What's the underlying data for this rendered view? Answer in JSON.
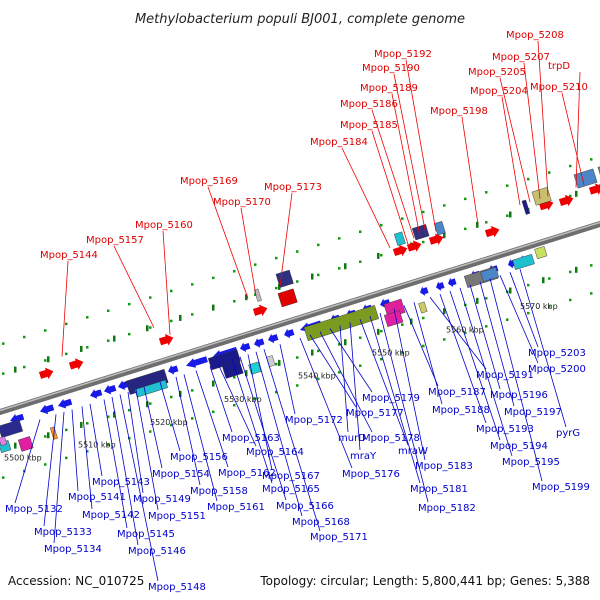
{
  "title": "Methylobacterium populi BJ001, complete genome",
  "footer": {
    "accession": "Accession: NC_010725",
    "summary": "Topology: circular; Length: 5,800,441 bp; Genes: 5,388"
  },
  "colors": {
    "forward_label": "#dd0000",
    "reverse_label": "#0000cc",
    "backbone": "#888888",
    "tick": "#118811"
  },
  "kbp_markers": [
    "5500 kbp",
    "5510 kbp",
    "5520 kbp",
    "5530 kbp",
    "5540 kbp",
    "5550 kbp",
    "5560 kbp",
    "5570 kbp"
  ],
  "forward_genes": [
    "Mpop_5144",
    "Mpop_5157",
    "Mpop_5160",
    "Mpop_5169",
    "Mpop_5170",
    "Mpop_5173",
    "Mpop_5184",
    "Mpop_5185",
    "Mpop_5186",
    "Mpop_5189",
    "Mpop_5190",
    "Mpop_5192",
    "Mpop_5198",
    "Mpop_5204",
    "Mpop_5205",
    "Mpop_5207",
    "Mpop_5208",
    "trpD",
    "Mpop_5210"
  ],
  "reverse_genes": [
    "Mpop_5132",
    "Mpop_5133",
    "Mpop_5134",
    "Mpop_5141",
    "Mpop_5142",
    "Mpop_5143",
    "Mpop_5145",
    "Mpop_5146",
    "Mpop_5148",
    "Mpop_5149",
    "Mpop_5151",
    "Mpop_5154",
    "Mpop_5156",
    "Mpop_5158",
    "Mpop_5161",
    "Mpop_5162",
    "Mpop_5163",
    "Mpop_5164",
    "Mpop_5165",
    "Mpop_5166",
    "Mpop_5167",
    "Mpop_5168",
    "Mpop_5171",
    "Mpop_5172",
    "Mpop_5176",
    "Mpop_5177",
    "Mpop_5178",
    "Mpop_5179",
    "murD",
    "mraY",
    "mraW",
    "Mpop_5181",
    "Mpop_5182",
    "Mpop_5183",
    "Mpop_5187",
    "Mpop_5188",
    "Mpop_5191",
    "Mpop_5193",
    "Mpop_5194",
    "Mpop_5195",
    "Mpop_5196",
    "Mpop_5197",
    "Mpop_5199",
    "Mpop_5200",
    "Mpop_5203",
    "pyrG"
  ]
}
